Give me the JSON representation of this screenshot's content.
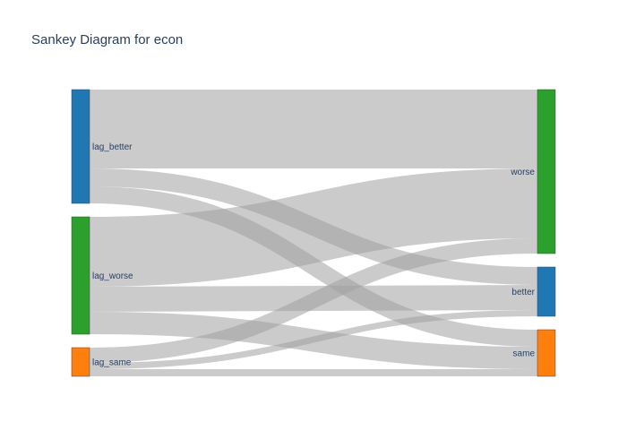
{
  "title": "Sankey Diagram for econ",
  "chart_data": {
    "type": "sankey",
    "title": "Sankey Diagram for econ",
    "link_color": "#a0a0a0",
    "nodes": [
      {
        "id": "lag_better",
        "label": "lag_better",
        "side": "source",
        "color": "#1f77b4"
      },
      {
        "id": "lag_worse",
        "label": "lag_worse",
        "side": "source",
        "color": "#2ca02c"
      },
      {
        "id": "lag_same",
        "label": "lag_same",
        "side": "source",
        "color": "#ff7f0e"
      },
      {
        "id": "worse",
        "label": "worse",
        "side": "target",
        "color": "#2ca02c"
      },
      {
        "id": "better",
        "label": "better",
        "side": "target",
        "color": "#1f77b4"
      },
      {
        "id": "same",
        "label": "same",
        "side": "target",
        "color": "#ff7f0e"
      }
    ],
    "links": [
      {
        "source": "lag_better",
        "target": "worse",
        "value": 88
      },
      {
        "source": "lag_better",
        "target": "better",
        "value": 20
      },
      {
        "source": "lag_better",
        "target": "same",
        "value": 19
      },
      {
        "source": "lag_worse",
        "target": "worse",
        "value": 78
      },
      {
        "source": "lag_worse",
        "target": "better",
        "value": 28
      },
      {
        "source": "lag_worse",
        "target": "same",
        "value": 25
      },
      {
        "source": "lag_same",
        "target": "worse",
        "value": 17
      },
      {
        "source": "lag_same",
        "target": "better",
        "value": 7
      },
      {
        "source": "lag_same",
        "target": "same",
        "value": 8
      }
    ]
  }
}
